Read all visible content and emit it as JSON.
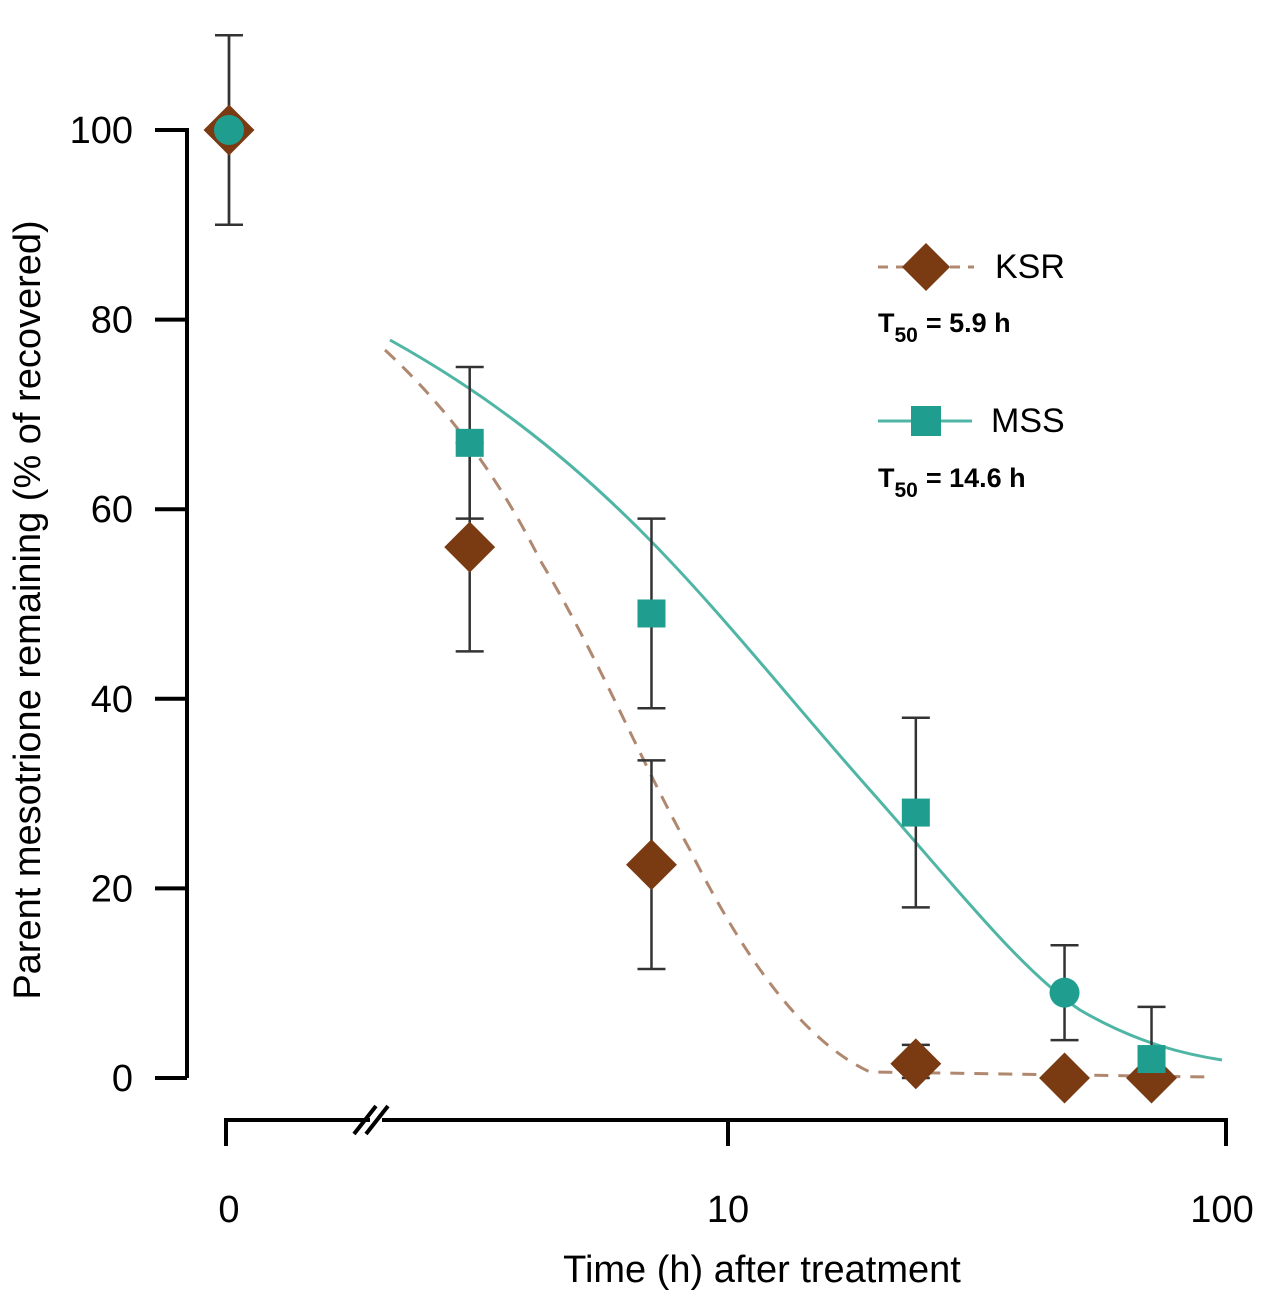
{
  "chart_data": {
    "type": "scatter",
    "title": "",
    "xlabel": "Time (h) after treatment",
    "ylabel": "Parent mesotrione remaining (% of  recovered)",
    "x_scale": "log with broken axis at 0",
    "x_ticks": [
      "0",
      "10",
      "100"
    ],
    "y_ticks": [
      "0",
      "20",
      "40",
      "60",
      "80",
      "100"
    ],
    "ylim": [
      0,
      105
    ],
    "legend_position": "upper-right",
    "colors": {
      "KSR": "#7a3a12",
      "KSR_line": "#b08870",
      "MSS": "#1f9e90",
      "MSS_line": "#4fb5a5",
      "errorbar": "#333333"
    },
    "series": [
      {
        "name": "KSR",
        "t50_label": "T",
        "t50_sub": "50",
        "t50_value": "=  5.9 h",
        "marker": "diamond",
        "line": "dashed",
        "points": [
          {
            "x": 0,
            "y": 100,
            "err": 10
          },
          {
            "x": 3,
            "y": 56,
            "err": 11
          },
          {
            "x": 7,
            "y": 22.5,
            "err": 11
          },
          {
            "x": 24,
            "y": 1.5,
            "err": 2
          },
          {
            "x": 48,
            "y": 0,
            "err": 0
          },
          {
            "x": 72,
            "y": 0,
            "err": 0
          }
        ]
      },
      {
        "name": "MSS",
        "t50_label": "T",
        "t50_sub": "50",
        "t50_value": "=  14.6 h",
        "marker": "square",
        "line": "solid",
        "points": [
          {
            "x": 0,
            "y": 100,
            "err": 10
          },
          {
            "x": 3,
            "y": 67,
            "err": 8
          },
          {
            "x": 7,
            "y": 49,
            "err": 10
          },
          {
            "x": 24,
            "y": 28,
            "err": 10
          },
          {
            "x": 48,
            "y": 9,
            "err": 5
          },
          {
            "x": 72,
            "y": 2,
            "err": 5.5
          }
        ]
      }
    ]
  }
}
